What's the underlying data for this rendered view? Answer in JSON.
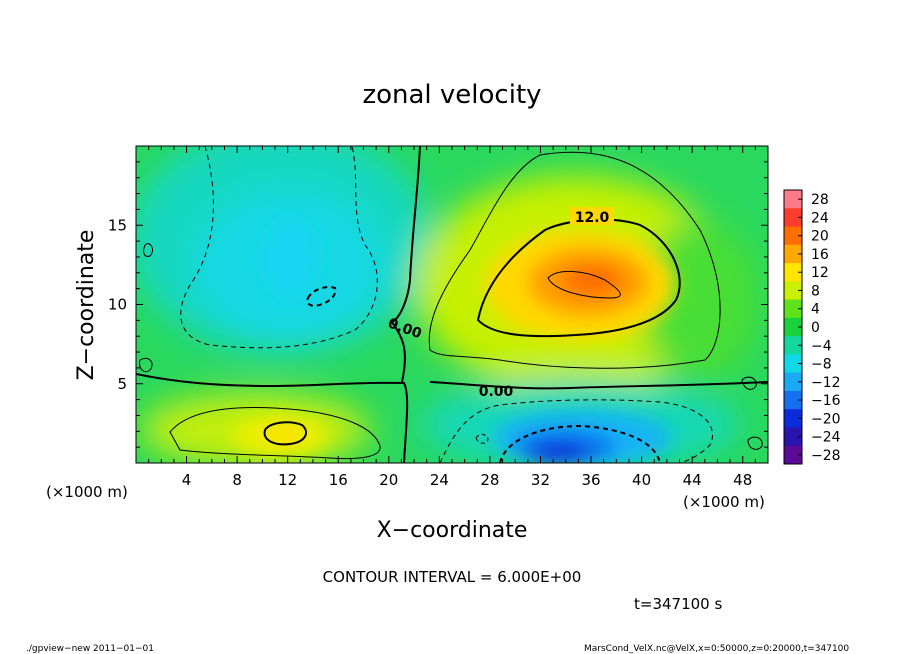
{
  "chart_data": {
    "type": "heatmap",
    "title": "zonal velocity",
    "xlabel": "X−coordinate",
    "ylabel": "Z−coordinate",
    "x_unit_label": "(×1000 m)",
    "y_unit_label": "(×1000 m)",
    "xlim": [
      0,
      50
    ],
    "ylim": [
      0,
      20
    ],
    "x_ticks": [
      4,
      8,
      12,
      16,
      20,
      24,
      28,
      32,
      36,
      40,
      44,
      48
    ],
    "y_ticks": [
      5,
      10,
      15
    ],
    "colorbar_ticks": [
      "28",
      "24",
      "20",
      "16",
      "12",
      "8",
      "4",
      "0",
      "−4",
      "−8",
      "−12",
      "−16",
      "−20",
      "−24",
      "−28"
    ],
    "colorbar_levels": [
      28,
      24,
      20,
      16,
      12,
      8,
      4,
      0,
      -4,
      -8,
      -12,
      -16,
      -20,
      -24,
      -28
    ],
    "colorbar_colors": [
      "#ff7b87",
      "#ff3b2b",
      "#ff6e00",
      "#ffa800",
      "#ffe400",
      "#c8f000",
      "#5ee21a",
      "#18d23c",
      "#14d7a0",
      "#10d8e6",
      "#1aaaf5",
      "#1470f0",
      "#0a2cdc",
      "#2a14b0",
      "#5a0a96"
    ],
    "contour_labels": [
      "12.0",
      "0.00",
      "0.00"
    ],
    "contour_interval": "CONTOUR INTERVAL = 6.000E+00",
    "time_label": "t=347100 s",
    "footer_left": "./gpview−new   2011−01−01",
    "footer_right": "MarsCond_VelX.nc@VelX,x=0:50000,z=0:20000,t=347100",
    "features": [
      {
        "x": 35,
        "z": 11.8,
        "value": 22
      },
      {
        "x": 34,
        "z": 0.8,
        "value": -20
      },
      {
        "x": 12,
        "z": 13.5,
        "value": -8
      },
      {
        "x": 12,
        "z": 1.7,
        "value": 13
      }
    ]
  }
}
